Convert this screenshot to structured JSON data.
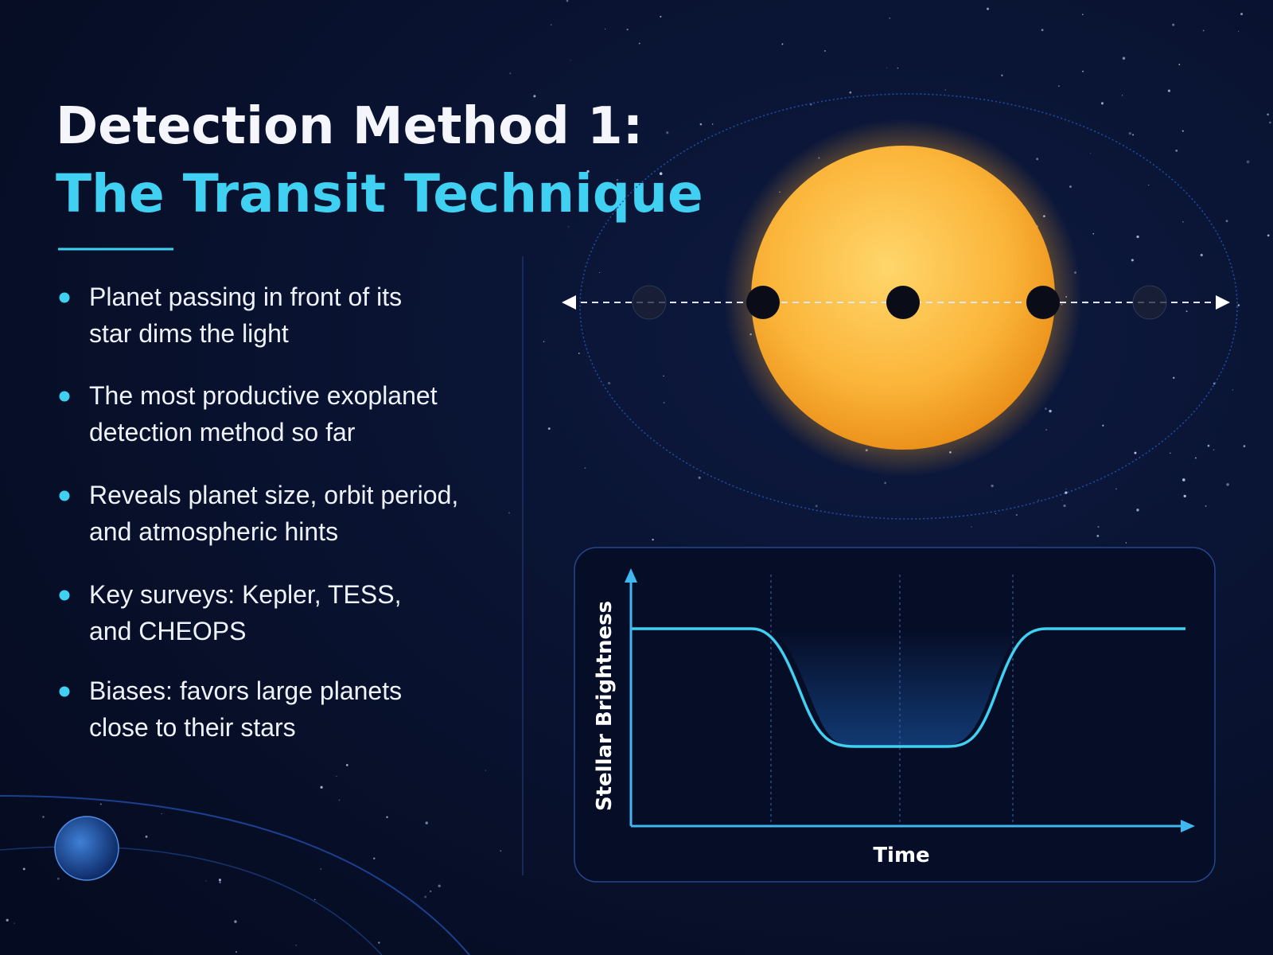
{
  "header": {
    "title_line1": "Detection Method 1:",
    "title_line2": "The Transit Technique"
  },
  "bullets": [
    {
      "lines": [
        "Planet passing in front of its",
        "star dims the light"
      ]
    },
    {
      "lines": [
        "The most productive exoplanet",
        "detection method so far"
      ]
    },
    {
      "lines": [
        "Reveals planet size, orbit period,",
        "and atmospheric hints"
      ]
    },
    {
      "lines": [
        "Key surveys: Kepler, TESS,",
        "and CHEOPS"
      ]
    },
    {
      "lines": [
        "Biases: favors large planets",
        "close to their stars"
      ]
    }
  ],
  "light_curve": {
    "y_axis_label": "Stellar Brightness",
    "x_axis_label": "Time"
  }
}
